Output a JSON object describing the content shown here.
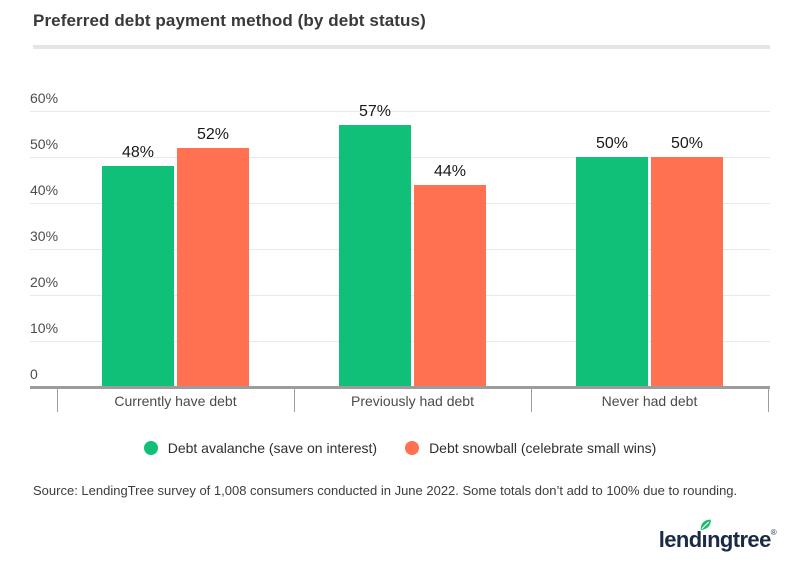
{
  "header": {
    "title": "Preferred debt payment method (by debt status)"
  },
  "chart_data": {
    "type": "bar",
    "title": "Preferred debt payment method (by debt status)",
    "categories": [
      "Currently have debt",
      "Previously had debt",
      "Never had debt"
    ],
    "series": [
      {
        "name": "Debt avalanche (save on interest)",
        "color": "#10c078",
        "values": [
          48,
          57,
          50
        ]
      },
      {
        "name": "Debt snowball (celebrate small wins)",
        "color": "#ff7150",
        "values": [
          52,
          44,
          50
        ]
      }
    ],
    "value_suffix": "%",
    "ylim": [
      0,
      60
    ],
    "yticks": [
      {
        "value": 60,
        "label": "60%"
      },
      {
        "value": 50,
        "label": "50%"
      },
      {
        "value": 40,
        "label": "40%"
      },
      {
        "value": 30,
        "label": "30%"
      },
      {
        "value": 20,
        "label": "20%"
      },
      {
        "value": 10,
        "label": "10%"
      },
      {
        "value": 0,
        "label": "0"
      }
    ],
    "grid": true,
    "legend_position": "bottom"
  },
  "footer": {
    "source": "Source: LendingTree survey of 1,008 consumers conducted in June 2022. Some totals don’t add to 100% due to rounding.",
    "logo": {
      "text": "lendingtree",
      "trademark": "®",
      "leaf_icon": "leaf-icon",
      "leaf_color": "#1eba70",
      "text_color": "#1a2a47"
    }
  }
}
